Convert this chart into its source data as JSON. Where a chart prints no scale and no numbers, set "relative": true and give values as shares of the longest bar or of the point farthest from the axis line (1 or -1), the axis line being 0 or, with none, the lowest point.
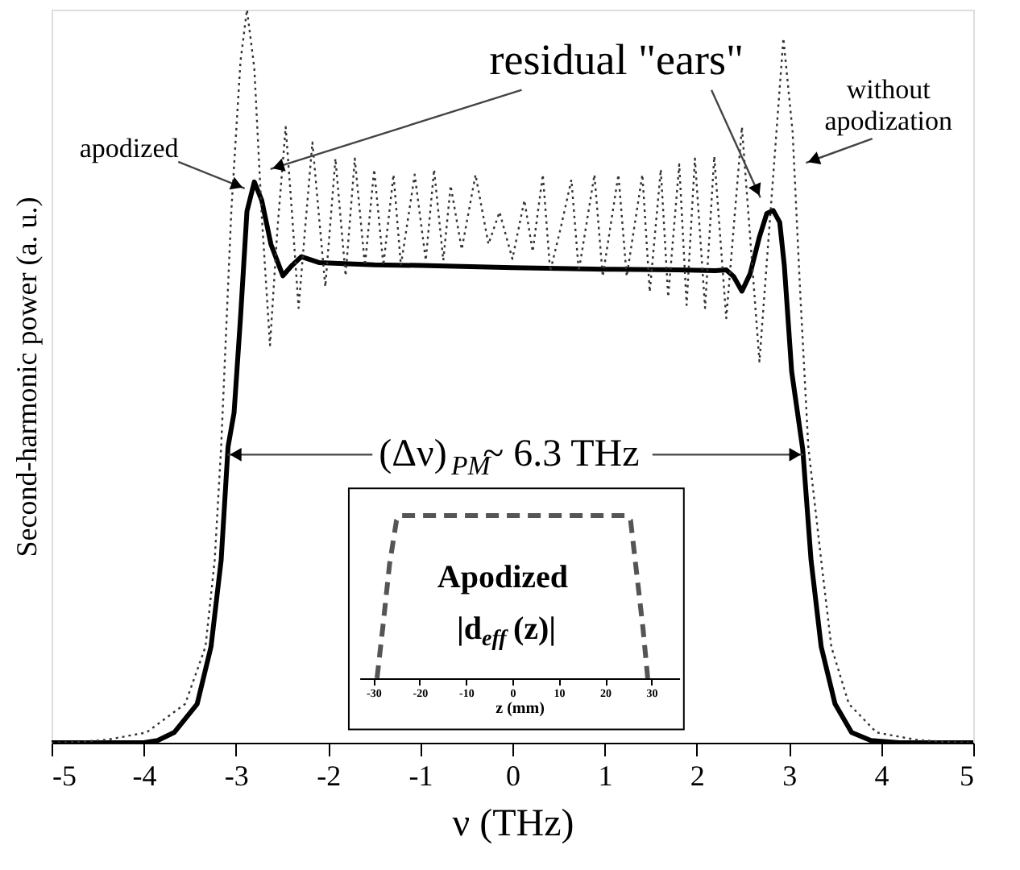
{
  "chart_data": [
    {
      "type": "line",
      "relative": true,
      "xlabel": "ν (THz)",
      "ylabel": "Second-harmonic power (a. u.)",
      "xlim": [
        -5,
        5
      ],
      "xticks": [
        -5,
        -4,
        -3,
        -2,
        -1,
        0,
        1,
        2,
        3,
        4,
        5
      ],
      "grid": false,
      "marker": "none",
      "annotations": [
        "apodized",
        "residual \"ears\"",
        "without\napodization",
        "(Δν)$_{PM}$~ 6.3 THz"
      ],
      "series": [
        {
          "color": "#000000",
          "line_style": "solid",
          "x": [
            -5,
            -4.5,
            -4,
            -3.85,
            -3.67,
            -3.42,
            -3.27,
            -3.16,
            -3.085,
            -3.02,
            -2.95,
            -2.88,
            -2.8,
            -2.72,
            -2.62,
            -2.49,
            -2.4,
            -2.29,
            -2.1,
            -1.5,
            -1,
            0,
            1,
            1.8,
            2.2,
            2.32,
            2.4,
            2.49,
            2.58,
            2.68,
            2.76,
            2.83,
            2.9,
            2.95,
            3.03,
            3.15,
            3.24,
            3.35,
            3.5,
            3.68,
            3.89,
            4.2,
            5
          ],
          "values": [
            0,
            0,
            0,
            0.003,
            0.014,
            0.053,
            0.131,
            0.249,
            0.404,
            0.45,
            0.58,
            0.725,
            0.765,
            0.74,
            0.68,
            0.637,
            0.65,
            0.663,
            0.655,
            0.652,
            0.651,
            0.648,
            0.646,
            0.645,
            0.644,
            0.645,
            0.636,
            0.616,
            0.64,
            0.69,
            0.722,
            0.726,
            0.71,
            0.651,
            0.506,
            0.4,
            0.249,
            0.131,
            0.053,
            0.014,
            0.003,
            0,
            0
          ]
        },
        {
          "color": "#333333",
          "line_style": "dotted",
          "x": [
            -5,
            -4.7,
            -4.4,
            -3.97,
            -3.55,
            -3.33,
            -3.23,
            -3.16,
            -3.05,
            -2.95,
            -2.88,
            -2.8,
            -2.72,
            -2.63,
            -2.55,
            -2.46,
            -2.39,
            -2.32,
            -2.25,
            -2.17,
            -2.1,
            -2.03,
            -1.92,
            -1.81,
            -1.71,
            -1.6,
            -1.5,
            -1.4,
            -1.29,
            -1.21,
            -1.06,
            -0.94,
            -0.85,
            -0.75,
            -0.67,
            -0.55,
            -0.4,
            -0.26,
            -0.14,
            0,
            0.13,
            0.22,
            0.33,
            0.41,
            0.52,
            0.64,
            0.72,
            0.89,
            0.98,
            1.15,
            1.24,
            1.41,
            1.49,
            1.61,
            1.69,
            1.81,
            1.89,
            1.98,
            2.09,
            2.19,
            2.32,
            2.49,
            2.68,
            2.94,
            3.04,
            3.12,
            3.21,
            3.35,
            3.46,
            3.65,
            3.95,
            4.38,
            4.7,
            5
          ],
          "values": [
            0,
            0.001,
            0.004,
            0.014,
            0.053,
            0.131,
            0.249,
            0.404,
            0.725,
            0.93,
            1.0,
            0.92,
            0.72,
            0.542,
            0.7,
            0.84,
            0.72,
            0.593,
            0.7,
            0.819,
            0.72,
            0.622,
            0.797,
            0.637,
            0.797,
            0.651,
            0.782,
            0.651,
            0.775,
            0.651,
            0.775,
            0.658,
            0.782,
            0.658,
            0.76,
            0.673,
            0.775,
            0.68,
            0.724,
            0.66,
            0.74,
            0.67,
            0.775,
            0.643,
            0.7,
            0.768,
            0.643,
            0.775,
            0.636,
            0.775,
            0.636,
            0.775,
            0.615,
            0.782,
            0.608,
            0.789,
            0.597,
            0.797,
            0.593,
            0.8,
            0.579,
            0.84,
            0.52,
            0.961,
            0.833,
            0.62,
            0.404,
            0.249,
            0.131,
            0.053,
            0.014,
            0.004,
            0.001,
            0
          ]
        }
      ]
    },
    {
      "type": "line",
      "relative": true,
      "xlabel": "z (mm)",
      "xlim": [
        -33,
        36
      ],
      "xticks": [
        -30,
        -20,
        -10,
        0,
        10,
        20,
        30
      ],
      "marker": "none",
      "annotations": [
        "Apodized",
        "|d$_{eff}$(z)|"
      ],
      "series": [
        {
          "color": "#555555",
          "line_style": "dashed",
          "x": [
            -29.2,
            -28,
            -26.5,
            -25,
            -24.4,
            -23.5,
            23.5,
            24.5,
            25.5,
            27,
            28.2,
            29.2
          ],
          "values": [
            0,
            0.3,
            0.7,
            0.97,
            1,
            1,
            1,
            1,
            0.97,
            0.6,
            0.3,
            0
          ]
        }
      ]
    }
  ]
}
